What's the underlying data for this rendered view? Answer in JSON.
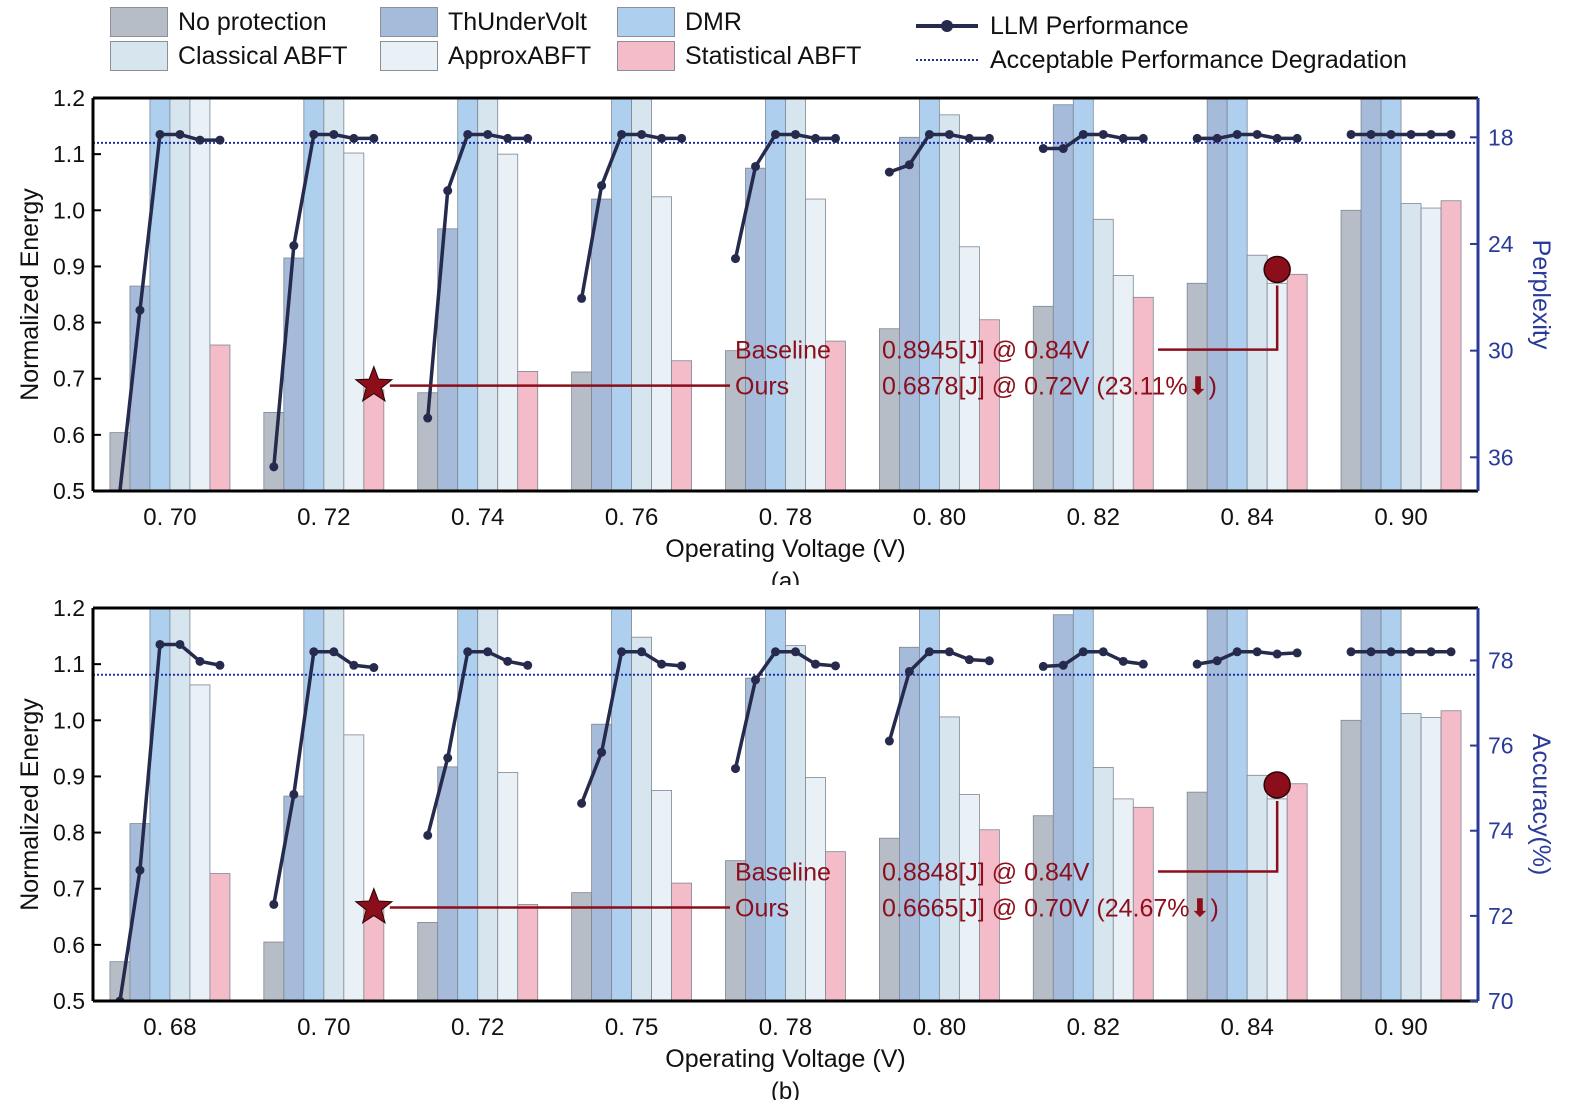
{
  "legend": {
    "items": [
      {
        "label": "No protection",
        "color": "#b7bdc7"
      },
      {
        "label": "ThUnderVolt",
        "color": "#a5bbd9"
      },
      {
        "label": "DMR",
        "color": "#aed0ee"
      },
      {
        "label": "Classical ABFT",
        "color": "#d7e5ef"
      },
      {
        "label": "ApproxABFT",
        "color": "#e9f1f7"
      },
      {
        "label": "Statistical ABFT",
        "color": "#f4bcc8"
      }
    ],
    "line_label": "LLM Performance",
    "threshold_label": "Acceptable Performance Degradation",
    "line_color": "#262a4d",
    "threshold_color": "#2030a0"
  },
  "chart_data": [
    {
      "type": "bar",
      "caption": "(a)",
      "xlabel": "Operating Voltage (V)",
      "ylabel": "Normalized Energy",
      "y2label": "Perplexity",
      "ylim": [
        0.5,
        1.2
      ],
      "yticks": [
        "0.5",
        "0.6",
        "0.7",
        "0.8",
        "0.9",
        "1.0",
        "1.1",
        "1.2"
      ],
      "y2ticks": [
        {
          "label": "18",
          "value": 1.13
        },
        {
          "label": "24",
          "value": 0.94
        },
        {
          "label": "30",
          "value": 0.75
        },
        {
          "label": "36",
          "value": 0.56
        }
      ],
      "categories": [
        "0. 70",
        "0. 72",
        "0. 74",
        "0. 76",
        "0. 78",
        "0. 80",
        "0. 82",
        "0. 84",
        "0. 90"
      ],
      "series": [
        {
          "name": "No protection",
          "values": [
            0.604,
            0.64,
            0.675,
            0.712,
            0.75,
            0.789,
            0.829,
            0.87,
            1.0
          ]
        },
        {
          "name": "ThUnderVolt",
          "values": [
            0.865,
            0.915,
            0.967,
            1.02,
            1.075,
            1.13,
            1.188,
            1.25,
            1.3
          ]
        },
        {
          "name": "DMR",
          "values": [
            1.25,
            1.25,
            1.25,
            1.25,
            1.25,
            1.25,
            1.25,
            1.25,
            1.25
          ]
        },
        {
          "name": "Classical ABFT",
          "values": [
            1.25,
            1.25,
            1.25,
            1.25,
            1.25,
            1.17,
            0.984,
            0.92,
            1.012
          ]
        },
        {
          "name": "ApproxABFT",
          "values": [
            1.25,
            1.102,
            1.1,
            1.024,
            1.02,
            0.935,
            0.884,
            0.87,
            1.004
          ]
        },
        {
          "name": "Statistical ABFT",
          "values": [
            0.76,
            0.68,
            0.713,
            0.732,
            0.767,
            0.805,
            0.845,
            0.886,
            1.017
          ]
        }
      ],
      "performance_line": [
        [
          0.48,
          0.822,
          1.135,
          1.135,
          1.125,
          1.125
        ],
        [
          0.543,
          0.937,
          1.135,
          1.135,
          1.128,
          1.128
        ],
        [
          0.63,
          1.035,
          1.135,
          1.135,
          1.128,
          1.128
        ],
        [
          0.843,
          1.044,
          1.135,
          1.135,
          1.128,
          1.128
        ],
        [
          0.914,
          1.078,
          1.135,
          1.135,
          1.128,
          1.128
        ],
        [
          1.068,
          1.081,
          1.135,
          1.135,
          1.128,
          1.128
        ],
        [
          1.11,
          1.11,
          1.135,
          1.135,
          1.128,
          1.128
        ],
        [
          1.128,
          1.128,
          1.135,
          1.135,
          1.128,
          1.128
        ],
        [
          1.135,
          1.135,
          1.135,
          1.135,
          1.135,
          1.135
        ]
      ],
      "threshold": 1.12,
      "baseline_label": "Baseline",
      "baseline_value": "0.8945[J] @ 0.84V",
      "baseline_marker": {
        "category": "0. 84",
        "energy": 0.8945
      },
      "ours_label": "Ours",
      "ours_value": "0.6878[J] @ 0.72V (23.11%⬇)",
      "ours_marker": {
        "category": "0. 72",
        "energy": 0.6878
      }
    },
    {
      "type": "bar",
      "caption": "(b)",
      "xlabel": "Operating Voltage (V)",
      "ylabel": "Normalized Energy",
      "y2label": "Accuracy(%)",
      "ylim": [
        0.5,
        1.2
      ],
      "yticks": [
        "0.5",
        "0.6",
        "0.7",
        "0.8",
        "0.9",
        "1.0",
        "1.1",
        "1.2"
      ],
      "y2ticks": [
        {
          "label": "70",
          "value": 0.5
        },
        {
          "label": "72",
          "value": 0.6516
        },
        {
          "label": "74",
          "value": 0.8033
        },
        {
          "label": "76",
          "value": 0.955
        },
        {
          "label": "78",
          "value": 1.1066
        }
      ],
      "categories": [
        "0. 68",
        "0. 70",
        "0. 72",
        "0. 75",
        "0. 78",
        "0. 80",
        "0. 82",
        "0. 84",
        "0. 90"
      ],
      "series": [
        {
          "name": "No protection",
          "values": [
            0.57,
            0.605,
            0.64,
            0.693,
            0.75,
            0.79,
            0.83,
            0.872,
            1.0
          ]
        },
        {
          "name": "ThUnderVolt",
          "values": [
            0.816,
            0.865,
            0.917,
            0.993,
            1.075,
            1.13,
            1.188,
            1.25,
            1.3
          ]
        },
        {
          "name": "DMR",
          "values": [
            1.25,
            1.25,
            1.25,
            1.25,
            1.25,
            1.25,
            1.25,
            1.25,
            1.25
          ]
        },
        {
          "name": "Classical ABFT",
          "values": [
            1.25,
            1.25,
            1.25,
            1.148,
            1.133,
            1.006,
            0.916,
            0.902,
            1.012
          ]
        },
        {
          "name": "ApproxABFT",
          "values": [
            1.063,
            0.974,
            0.907,
            0.875,
            0.898,
            0.868,
            0.86,
            0.86,
            1.005
          ]
        },
        {
          "name": "Statistical ABFT",
          "values": [
            0.727,
            0.67,
            0.672,
            0.71,
            0.766,
            0.805,
            0.845,
            0.887,
            1.017
          ]
        }
      ],
      "performance_line": [
        [
          0.5,
          0.733,
          1.135,
          1.135,
          1.105,
          1.098
        ],
        [
          0.672,
          0.868,
          1.122,
          1.122,
          1.098,
          1.094
        ],
        [
          0.795,
          0.933,
          1.122,
          1.122,
          1.105,
          1.098
        ],
        [
          0.852,
          0.943,
          1.122,
          1.122,
          1.1,
          1.097
        ],
        [
          0.914,
          1.072,
          1.122,
          1.122,
          1.1,
          1.097
        ],
        [
          0.963,
          1.087,
          1.122,
          1.122,
          1.108,
          1.106
        ],
        [
          1.096,
          1.098,
          1.122,
          1.122,
          1.105,
          1.1
        ],
        [
          1.1,
          1.106,
          1.122,
          1.122,
          1.118,
          1.12
        ],
        [
          1.122,
          1.122,
          1.122,
          1.122,
          1.122,
          1.122
        ]
      ],
      "threshold": 1.081,
      "baseline_label": "Baseline",
      "baseline_value": "0.8848[J] @ 0.84V",
      "baseline_marker": {
        "category": "0. 84",
        "energy": 0.8848
      },
      "ours_label": "Ours",
      "ours_value": "0.6665[J] @ 0.70V (24.67%⬇)",
      "ours_marker": {
        "category": "0. 70",
        "energy": 0.6665
      }
    }
  ]
}
